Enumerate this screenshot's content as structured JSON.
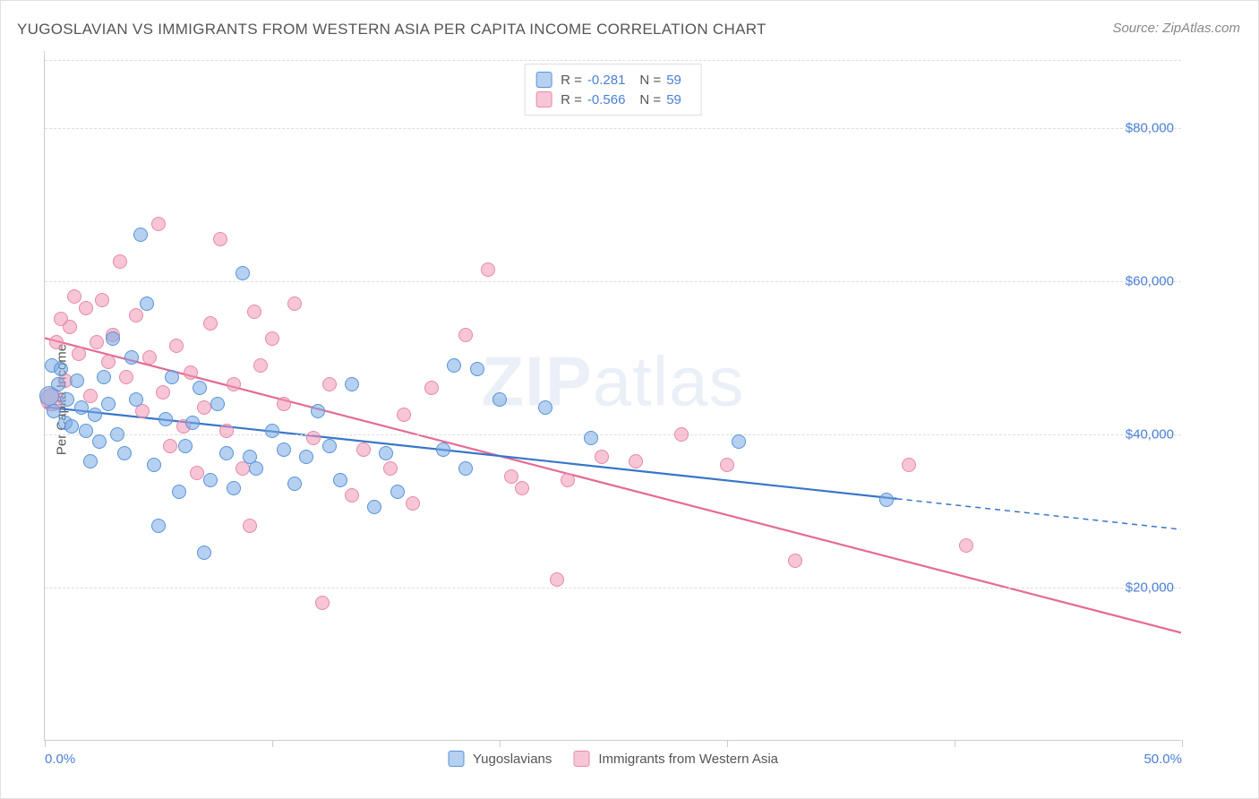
{
  "title": "YUGOSLAVIAN VS IMMIGRANTS FROM WESTERN ASIA PER CAPITA INCOME CORRELATION CHART",
  "source": "Source: ZipAtlas.com",
  "watermark": {
    "bold": "ZIP",
    "light": "atlas"
  },
  "chart": {
    "type": "scatter",
    "background_color": "#ffffff",
    "grid_color": "#dddddd",
    "axis_color": "#cccccc",
    "xlim": [
      0,
      50
    ],
    "ylim": [
      0,
      90000
    ],
    "x_unit": "%",
    "y_axis_label": "Per Capita Income",
    "x_ticks": [
      {
        "val": 0,
        "label": "0.0%"
      },
      {
        "val": 10,
        "label": ""
      },
      {
        "val": 20,
        "label": ""
      },
      {
        "val": 30,
        "label": ""
      },
      {
        "val": 40,
        "label": ""
      },
      {
        "val": 50,
        "label": "50.0%"
      }
    ],
    "y_ticks": [
      {
        "val": 20000,
        "label": "$20,000"
      },
      {
        "val": 40000,
        "label": "$40,000"
      },
      {
        "val": 60000,
        "label": "$60,000"
      },
      {
        "val": 80000,
        "label": "$80,000"
      }
    ],
    "tick_label_color": "#4a7fd6",
    "tick_label_fontsize": 15,
    "axis_label_color": "#555555",
    "axis_label_fontsize": 15,
    "point_radius_min": 7,
    "point_radius_max": 11,
    "series": {
      "a": {
        "name": "Yugoslavians",
        "fill_color": "rgba(120,170,230,0.55)",
        "stroke_color": "#5a94d6",
        "line_color": "#3876c9",
        "line_width": 2.2,
        "R": "-0.281",
        "N": "59",
        "trend_solid": {
          "x1": 0.0,
          "y1": 43500,
          "x2": 37.5,
          "y2": 31500
        },
        "trend_dashed": {
          "x1": 37.5,
          "y1": 31500,
          "x2": 50.0,
          "y2": 27500
        },
        "points": [
          {
            "x": 0.2,
            "y": 45000,
            "r": 11
          },
          {
            "x": 0.3,
            "y": 49000,
            "r": 8
          },
          {
            "x": 0.4,
            "y": 43000,
            "r": 8
          },
          {
            "x": 0.6,
            "y": 46500,
            "r": 8
          },
          {
            "x": 0.7,
            "y": 48500,
            "r": 8
          },
          {
            "x": 0.9,
            "y": 41500,
            "r": 8
          },
          {
            "x": 1.0,
            "y": 44500,
            "r": 8
          },
          {
            "x": 1.2,
            "y": 41000,
            "r": 8
          },
          {
            "x": 1.4,
            "y": 47000,
            "r": 8
          },
          {
            "x": 1.6,
            "y": 43500,
            "r": 8
          },
          {
            "x": 1.8,
            "y": 40500,
            "r": 8
          },
          {
            "x": 2.0,
            "y": 36500,
            "r": 8
          },
          {
            "x": 2.2,
            "y": 42500,
            "r": 8
          },
          {
            "x": 2.4,
            "y": 39000,
            "r": 8
          },
          {
            "x": 2.6,
            "y": 47500,
            "r": 8
          },
          {
            "x": 2.8,
            "y": 44000,
            "r": 8
          },
          {
            "x": 3.0,
            "y": 52500,
            "r": 8
          },
          {
            "x": 3.2,
            "y": 40000,
            "r": 8
          },
          {
            "x": 3.5,
            "y": 37500,
            "r": 8
          },
          {
            "x": 3.8,
            "y": 50000,
            "r": 8
          },
          {
            "x": 4.0,
            "y": 44500,
            "r": 8
          },
          {
            "x": 4.2,
            "y": 66000,
            "r": 8
          },
          {
            "x": 4.5,
            "y": 57000,
            "r": 8
          },
          {
            "x": 4.8,
            "y": 36000,
            "r": 8
          },
          {
            "x": 5.0,
            "y": 28000,
            "r": 8
          },
          {
            "x": 5.3,
            "y": 42000,
            "r": 8
          },
          {
            "x": 5.6,
            "y": 47500,
            "r": 8
          },
          {
            "x": 5.9,
            "y": 32500,
            "r": 8
          },
          {
            "x": 6.2,
            "y": 38500,
            "r": 8
          },
          {
            "x": 6.5,
            "y": 41500,
            "r": 8
          },
          {
            "x": 6.8,
            "y": 46000,
            "r": 8
          },
          {
            "x": 7.0,
            "y": 24500,
            "r": 8
          },
          {
            "x": 7.3,
            "y": 34000,
            "r": 8
          },
          {
            "x": 7.6,
            "y": 44000,
            "r": 8
          },
          {
            "x": 8.0,
            "y": 37500,
            "r": 8
          },
          {
            "x": 8.3,
            "y": 33000,
            "r": 8
          },
          {
            "x": 8.7,
            "y": 61000,
            "r": 8
          },
          {
            "x": 9.0,
            "y": 37000,
            "r": 8
          },
          {
            "x": 9.3,
            "y": 35500,
            "r": 8
          },
          {
            "x": 10.0,
            "y": 40500,
            "r": 8
          },
          {
            "x": 10.5,
            "y": 38000,
            "r": 8
          },
          {
            "x": 11.0,
            "y": 33500,
            "r": 8
          },
          {
            "x": 11.5,
            "y": 37000,
            "r": 8
          },
          {
            "x": 12.0,
            "y": 43000,
            "r": 8
          },
          {
            "x": 12.5,
            "y": 38500,
            "r": 8
          },
          {
            "x": 13.0,
            "y": 34000,
            "r": 8
          },
          {
            "x": 13.5,
            "y": 46500,
            "r": 8
          },
          {
            "x": 14.5,
            "y": 30500,
            "r": 8
          },
          {
            "x": 15.0,
            "y": 37500,
            "r": 8
          },
          {
            "x": 15.5,
            "y": 32500,
            "r": 8
          },
          {
            "x": 17.5,
            "y": 38000,
            "r": 8
          },
          {
            "x": 18.0,
            "y": 49000,
            "r": 8
          },
          {
            "x": 18.5,
            "y": 35500,
            "r": 8
          },
          {
            "x": 19.0,
            "y": 48500,
            "r": 8
          },
          {
            "x": 20.0,
            "y": 44500,
            "r": 8
          },
          {
            "x": 22.0,
            "y": 43500,
            "r": 8
          },
          {
            "x": 24.0,
            "y": 39500,
            "r": 8
          },
          {
            "x": 30.5,
            "y": 39000,
            "r": 8
          },
          {
            "x": 37.0,
            "y": 31500,
            "r": 8
          }
        ]
      },
      "b": {
        "name": "Immigrants from Western Asia",
        "fill_color": "rgba(240,150,180,0.55)",
        "stroke_color": "#e58aa8",
        "line_color": "#e56a94",
        "line_width": 2.2,
        "R": "-0.566",
        "N": "59",
        "trend_solid": {
          "x1": 0.0,
          "y1": 52500,
          "x2": 50.0,
          "y2": 14000
        },
        "points": [
          {
            "x": 0.3,
            "y": 44500,
            "r": 13
          },
          {
            "x": 0.5,
            "y": 52000,
            "r": 8
          },
          {
            "x": 0.7,
            "y": 55000,
            "r": 8
          },
          {
            "x": 0.9,
            "y": 47000,
            "r": 8
          },
          {
            "x": 1.1,
            "y": 54000,
            "r": 8
          },
          {
            "x": 1.3,
            "y": 58000,
            "r": 8
          },
          {
            "x": 1.5,
            "y": 50500,
            "r": 8
          },
          {
            "x": 1.8,
            "y": 56500,
            "r": 8
          },
          {
            "x": 2.0,
            "y": 45000,
            "r": 8
          },
          {
            "x": 2.3,
            "y": 52000,
            "r": 8
          },
          {
            "x": 2.5,
            "y": 57500,
            "r": 8
          },
          {
            "x": 2.8,
            "y": 49500,
            "r": 8
          },
          {
            "x": 3.0,
            "y": 53000,
            "r": 8
          },
          {
            "x": 3.3,
            "y": 62500,
            "r": 8
          },
          {
            "x": 3.6,
            "y": 47500,
            "r": 8
          },
          {
            "x": 4.0,
            "y": 55500,
            "r": 8
          },
          {
            "x": 4.3,
            "y": 43000,
            "r": 8
          },
          {
            "x": 4.6,
            "y": 50000,
            "r": 8
          },
          {
            "x": 5.0,
            "y": 67500,
            "r": 8
          },
          {
            "x": 5.2,
            "y": 45500,
            "r": 8
          },
          {
            "x": 5.5,
            "y": 38500,
            "r": 8
          },
          {
            "x": 5.8,
            "y": 51500,
            "r": 8
          },
          {
            "x": 6.1,
            "y": 41000,
            "r": 8
          },
          {
            "x": 6.4,
            "y": 48000,
            "r": 8
          },
          {
            "x": 6.7,
            "y": 35000,
            "r": 8
          },
          {
            "x": 7.0,
            "y": 43500,
            "r": 8
          },
          {
            "x": 7.3,
            "y": 54500,
            "r": 8
          },
          {
            "x": 7.7,
            "y": 65500,
            "r": 8
          },
          {
            "x": 8.0,
            "y": 40500,
            "r": 8
          },
          {
            "x": 8.3,
            "y": 46500,
            "r": 8
          },
          {
            "x": 8.7,
            "y": 35500,
            "r": 8
          },
          {
            "x": 9.0,
            "y": 28000,
            "r": 8
          },
          {
            "x": 9.2,
            "y": 56000,
            "r": 8
          },
          {
            "x": 9.5,
            "y": 49000,
            "r": 8
          },
          {
            "x": 10.0,
            "y": 52500,
            "r": 8
          },
          {
            "x": 10.5,
            "y": 44000,
            "r": 8
          },
          {
            "x": 11.0,
            "y": 57000,
            "r": 8
          },
          {
            "x": 11.8,
            "y": 39500,
            "r": 8
          },
          {
            "x": 12.2,
            "y": 18000,
            "r": 8
          },
          {
            "x": 12.5,
            "y": 46500,
            "r": 8
          },
          {
            "x": 13.5,
            "y": 32000,
            "r": 8
          },
          {
            "x": 14.0,
            "y": 38000,
            "r": 8
          },
          {
            "x": 15.2,
            "y": 35500,
            "r": 8
          },
          {
            "x": 15.8,
            "y": 42500,
            "r": 8
          },
          {
            "x": 16.2,
            "y": 31000,
            "r": 8
          },
          {
            "x": 17.0,
            "y": 46000,
            "r": 8
          },
          {
            "x": 18.5,
            "y": 53000,
            "r": 8
          },
          {
            "x": 19.5,
            "y": 61500,
            "r": 8
          },
          {
            "x": 20.5,
            "y": 34500,
            "r": 8
          },
          {
            "x": 21.0,
            "y": 33000,
            "r": 8
          },
          {
            "x": 22.5,
            "y": 21000,
            "r": 8
          },
          {
            "x": 23.0,
            "y": 34000,
            "r": 8
          },
          {
            "x": 24.5,
            "y": 37000,
            "r": 8
          },
          {
            "x": 26.0,
            "y": 36500,
            "r": 8
          },
          {
            "x": 28.0,
            "y": 40000,
            "r": 8
          },
          {
            "x": 30.0,
            "y": 36000,
            "r": 8
          },
          {
            "x": 33.0,
            "y": 23500,
            "r": 8
          },
          {
            "x": 38.0,
            "y": 36000,
            "r": 8
          },
          {
            "x": 40.5,
            "y": 25500,
            "r": 8
          }
        ]
      }
    },
    "legend_top": {
      "R_label": "R =",
      "N_label": "N ="
    }
  }
}
